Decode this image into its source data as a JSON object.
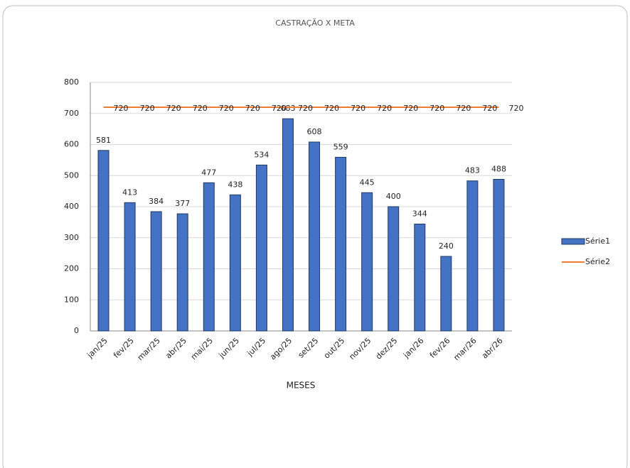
{
  "chart_data": {
    "type": "bar",
    "title": "CASTRAÇÃO X META",
    "x_label": "MESES",
    "categories": [
      "jan/25",
      "fev/25",
      "mar/25",
      "abr/25",
      "mai/25",
      "jun/25",
      "jul/25",
      "ago/25",
      "set/25",
      "out/25",
      "nov/25",
      "dez/25",
      "jan/26",
      "fev/26",
      "mar/26",
      "abr/26"
    ],
    "series": [
      {
        "name": "Série1",
        "type": "bar",
        "color": "#4472c4",
        "values": [
          581,
          413,
          384,
          377,
          477,
          438,
          534,
          683,
          608,
          559,
          445,
          400,
          344,
          240,
          483,
          488
        ]
      },
      {
        "name": "Série2",
        "type": "line",
        "color": "#ed7d31",
        "values": [
          720,
          720,
          720,
          720,
          720,
          720,
          720,
          720,
          720,
          720,
          720,
          720,
          720,
          720,
          720,
          720
        ]
      }
    ],
    "ylim": [
      0,
      800
    ],
    "yticks": [
      0,
      100,
      200,
      300,
      400,
      500,
      600,
      700,
      800
    ],
    "grid": true,
    "legend": "right"
  }
}
